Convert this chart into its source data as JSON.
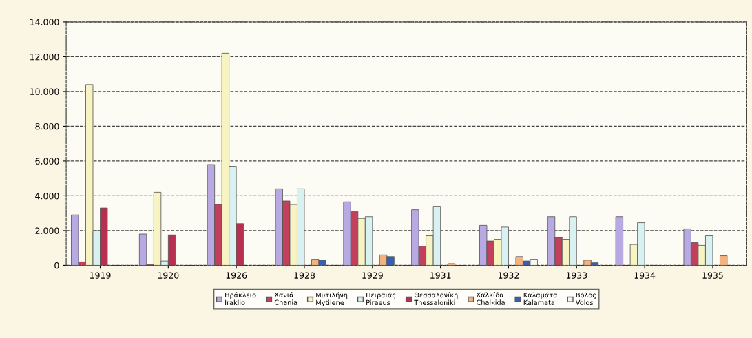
{
  "chart_data": {
    "type": "bar",
    "categories": [
      "1919",
      "1920",
      "1926",
      "1928",
      "1929",
      "1931",
      "1932",
      "1933",
      "1934",
      "1935"
    ],
    "series": [
      {
        "name": "Ηράκλειο\nIraklio",
        "color": "#b9a9e2",
        "values": [
          2900,
          1800,
          5800,
          4400,
          3650,
          3200,
          2300,
          2800,
          2800,
          2100
        ]
      },
      {
        "name": "Χανιά\nChania",
        "color": "#c2405c",
        "values": [
          200,
          50,
          3500,
          3700,
          3100,
          1100,
          1400,
          1600,
          null,
          1300
        ]
      },
      {
        "name": "Μυτιλήνη\nMytilene",
        "color": "#f7f3c2",
        "values": [
          10400,
          4200,
          12200,
          3500,
          2700,
          1700,
          1500,
          1500,
          1200,
          1150
        ]
      },
      {
        "name": "Πειραιάς\nPiraeus",
        "color": "#d9f1f1",
        "values": [
          2000,
          250,
          5700,
          4400,
          2800,
          3400,
          2200,
          2800,
          2450,
          1700
        ]
      },
      {
        "name": "Θεσσαλονίκη\nThessaloniki",
        "color": "#b8304f",
        "values": [
          3300,
          1750,
          2400,
          null,
          null,
          null,
          null,
          null,
          null,
          null
        ]
      },
      {
        "name": "Χαλκίδα\nChalkida",
        "color": "#f2b383",
        "values": [
          null,
          null,
          null,
          350,
          600,
          100,
          500,
          300,
          null,
          550
        ]
      },
      {
        "name": "Καλαμάτα\nKalamata",
        "color": "#3562b0",
        "values": [
          null,
          null,
          null,
          300,
          500,
          null,
          250,
          150,
          null,
          null
        ]
      },
      {
        "name": "Βόλος\nVolos",
        "color": "#f8f8f2",
        "values": [
          null,
          null,
          null,
          null,
          null,
          null,
          350,
          null,
          null,
          null
        ]
      }
    ],
    "ylim": [
      0,
      14000
    ],
    "yticks": [
      0,
      {
        "value": 2000,
        "label": "2.000"
      },
      {
        "value": 4000,
        "label": "4.000"
      },
      {
        "value": 6000,
        "label": "6.000"
      },
      {
        "value": 8000,
        "label": "8.000"
      },
      {
        "value": 10000,
        "label": "10.000"
      },
      {
        "value": 12000,
        "label": "12.000"
      },
      {
        "value": 14000,
        "label": "14.000"
      }
    ],
    "grid": "y",
    "legend": "bottom"
  }
}
